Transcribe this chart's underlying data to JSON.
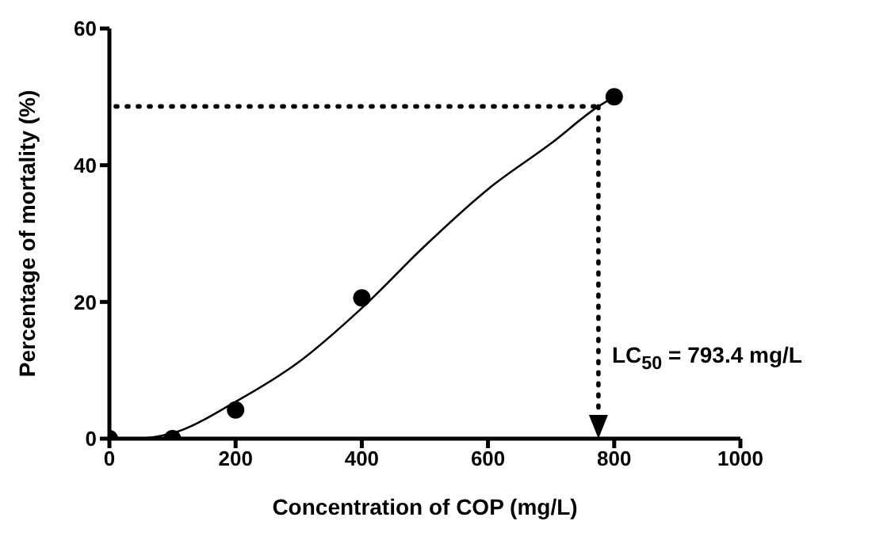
{
  "chart_data": {
    "type": "scatter",
    "xlabel": "Concentration of COP (mg/L)",
    "ylabel": "Percentage of mortality (%)",
    "xlim": [
      0,
      1000
    ],
    "xticks": [
      0,
      200,
      400,
      600,
      800,
      1000
    ],
    "ylim": [
      0,
      60
    ],
    "yticks": [
      0,
      20,
      40,
      60
    ],
    "series": [
      {
        "color": "#000000",
        "marker": "circle",
        "x": [
          0,
          100,
          200,
          400,
          800
        ],
        "values": [
          0,
          0,
          4.2,
          20.6,
          50
        ]
      },
      {
        "type": "line",
        "color": "#000000",
        "marker": "none",
        "line_style": "solid",
        "x": [
          0,
          40,
          100,
          200,
          300,
          400,
          500,
          600,
          700,
          775,
          800
        ],
        "values": [
          0,
          0,
          0.8,
          5.4,
          11.2,
          19.1,
          28.2,
          36.5,
          43.2,
          48.6,
          50
        ]
      }
    ],
    "ref_lines": [
      {
        "axis": "y",
        "value": 48.6,
        "color": "#000000",
        "line_style": "dotted"
      },
      {
        "axis": "x",
        "value": 775,
        "color": "#000000",
        "line_style": "dotted"
      }
    ],
    "annotations": [
      "LC$_{50}$ = 793.4 mg/L"
    ]
  }
}
